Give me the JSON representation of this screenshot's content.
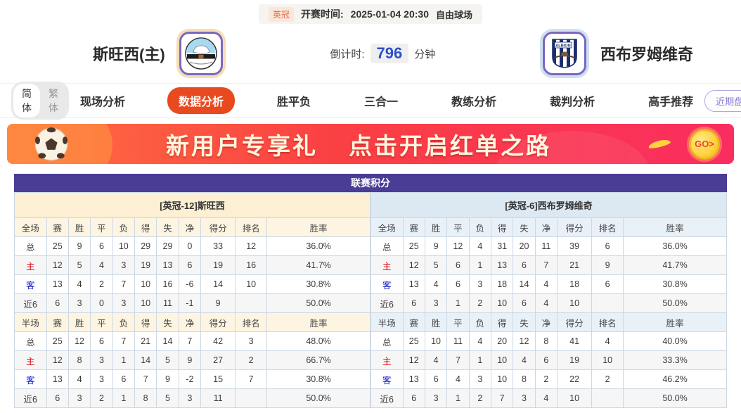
{
  "match_bar": {
    "league_badge": "英冠",
    "kickoff_label": "开赛时间:",
    "kickoff_time": "2025-01-04 20:30",
    "venue": "自由球场"
  },
  "teams": {
    "home": {
      "name": "斯旺西(主)"
    },
    "away": {
      "name": "西布罗姆维奇",
      "badge_text": "ALBION"
    }
  },
  "countdown": {
    "label": "倒计时:",
    "value": "796",
    "unit": "分钟"
  },
  "lang_toggle": {
    "simplified": "简体",
    "traditional": "繁体",
    "selected": "简体"
  },
  "nav": {
    "tabs": [
      {
        "label": "现场分析",
        "active": false
      },
      {
        "label": "数据分析",
        "active": true
      },
      {
        "label": "胜平负",
        "active": false
      },
      {
        "label": "三合一",
        "active": false
      },
      {
        "label": "教练分析",
        "active": false
      },
      {
        "label": "裁判分析",
        "active": false
      },
      {
        "label": "高手推荐",
        "active": false
      }
    ],
    "recent_button": "近期盘路"
  },
  "banner": {
    "title_left": "新用户专享礼",
    "title_right": "点击开启红单之路",
    "go_label": "GO>"
  },
  "standings": {
    "title": "联赛积分",
    "sides": [
      {
        "id": "home",
        "header": "[英冠-12]斯旺西",
        "theme": "cream",
        "sections": [
          {
            "scope": "全场",
            "columns": [
              "赛",
              "胜",
              "平",
              "负",
              "得",
              "失",
              "净",
              "得分",
              "排名",
              "胜率"
            ],
            "rows": [
              {
                "label": "总",
                "values": [
                  "25",
                  "9",
                  "6",
                  "10",
                  "29",
                  "29",
                  "0",
                  "33",
                  "12",
                  "36.0%"
                ]
              },
              {
                "label": "主",
                "values": [
                  "12",
                  "5",
                  "4",
                  "3",
                  "19",
                  "13",
                  "6",
                  "19",
                  "16",
                  "41.7%"
                ]
              },
              {
                "label": "客",
                "values": [
                  "13",
                  "4",
                  "2",
                  "7",
                  "10",
                  "16",
                  "-6",
                  "14",
                  "10",
                  "30.8%"
                ]
              },
              {
                "label": "近6",
                "values": [
                  "6",
                  "3",
                  "0",
                  "3",
                  "10",
                  "11",
                  "-1",
                  "9",
                  "",
                  "50.0%"
                ]
              }
            ]
          },
          {
            "scope": "半场",
            "columns": [
              "赛",
              "胜",
              "平",
              "负",
              "得",
              "失",
              "净",
              "得分",
              "排名",
              "胜率"
            ],
            "rows": [
              {
                "label": "总",
                "values": [
                  "25",
                  "12",
                  "6",
                  "7",
                  "21",
                  "14",
                  "7",
                  "42",
                  "3",
                  "48.0%"
                ]
              },
              {
                "label": "主",
                "values": [
                  "12",
                  "8",
                  "3",
                  "1",
                  "14",
                  "5",
                  "9",
                  "27",
                  "2",
                  "66.7%"
                ]
              },
              {
                "label": "客",
                "values": [
                  "13",
                  "4",
                  "3",
                  "6",
                  "7",
                  "9",
                  "-2",
                  "15",
                  "7",
                  "30.8%"
                ]
              },
              {
                "label": "近6",
                "values": [
                  "6",
                  "3",
                  "2",
                  "1",
                  "8",
                  "5",
                  "3",
                  "11",
                  "",
                  "50.0%"
                ]
              }
            ]
          }
        ]
      },
      {
        "id": "away",
        "header": "[英冠-6]西布罗姆维奇",
        "theme": "blue",
        "sections": [
          {
            "scope": "全场",
            "columns": [
              "赛",
              "胜",
              "平",
              "负",
              "得",
              "失",
              "净",
              "得分",
              "排名",
              "胜率"
            ],
            "rows": [
              {
                "label": "总",
                "values": [
                  "25",
                  "9",
                  "12",
                  "4",
                  "31",
                  "20",
                  "11",
                  "39",
                  "6",
                  "36.0%"
                ]
              },
              {
                "label": "主",
                "values": [
                  "12",
                  "5",
                  "6",
                  "1",
                  "13",
                  "6",
                  "7",
                  "21",
                  "9",
                  "41.7%"
                ]
              },
              {
                "label": "客",
                "values": [
                  "13",
                  "4",
                  "6",
                  "3",
                  "18",
                  "14",
                  "4",
                  "18",
                  "6",
                  "30.8%"
                ]
              },
              {
                "label": "近6",
                "values": [
                  "6",
                  "3",
                  "1",
                  "2",
                  "10",
                  "6",
                  "4",
                  "10",
                  "",
                  "50.0%"
                ]
              }
            ]
          },
          {
            "scope": "半场",
            "columns": [
              "赛",
              "胜",
              "平",
              "负",
              "得",
              "失",
              "净",
              "得分",
              "排名",
              "胜率"
            ],
            "rows": [
              {
                "label": "总",
                "values": [
                  "25",
                  "10",
                  "11",
                  "4",
                  "20",
                  "12",
                  "8",
                  "41",
                  "4",
                  "40.0%"
                ]
              },
              {
                "label": "主",
                "values": [
                  "12",
                  "4",
                  "7",
                  "1",
                  "10",
                  "4",
                  "6",
                  "19",
                  "10",
                  "33.3%"
                ]
              },
              {
                "label": "客",
                "values": [
                  "13",
                  "6",
                  "4",
                  "3",
                  "10",
                  "8",
                  "2",
                  "22",
                  "2",
                  "46.2%"
                ]
              },
              {
                "label": "近6",
                "values": [
                  "6",
                  "3",
                  "1",
                  "2",
                  "7",
                  "3",
                  "4",
                  "10",
                  "",
                  "50.0%"
                ]
              }
            ]
          }
        ]
      }
    ]
  },
  "colors": {
    "accent_orange": "#e8491f",
    "title_purple": "#4a3d96",
    "home_panel_cream": "#fcefd3",
    "away_panel_blue": "#dce8f2",
    "countdown_blue": "#2b50c8",
    "banner_red": "#fa3a4e",
    "home_row_label_red": "#d20000",
    "away_row_label_blue": "#0b18c4"
  }
}
